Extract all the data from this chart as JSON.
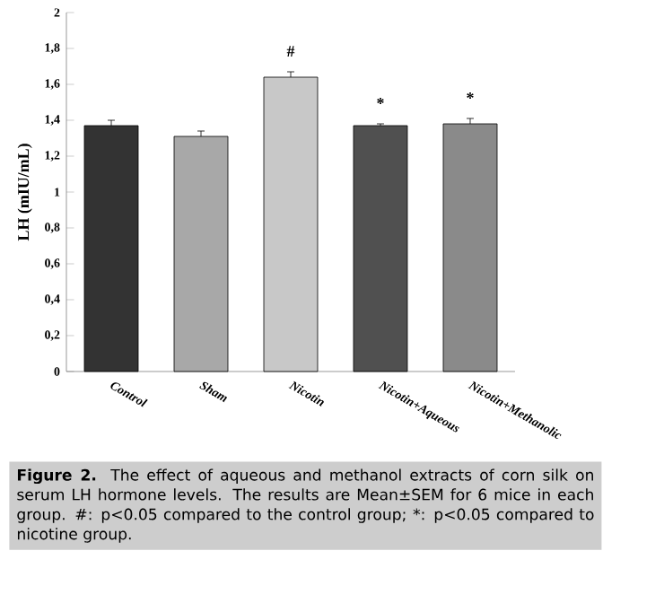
{
  "chart_data": {
    "type": "bar",
    "ylabel": "LH (mIU/mL)",
    "categories": [
      "Control",
      "Sham",
      "Nicotin",
      "Nicotin+Aqueous",
      "Nicotin+Methanolic"
    ],
    "values": [
      1.37,
      1.31,
      1.64,
      1.37,
      1.38
    ],
    "errors": [
      0.03,
      0.03,
      0.03,
      0.01,
      0.03
    ],
    "colors": [
      "#333333",
      "#a8a8a8",
      "#c8c8c8",
      "#505050",
      "#8a8a8a"
    ],
    "ylim": [
      0,
      2
    ],
    "yticks": [
      0,
      {
        "value": 0.2,
        "label": "0,2"
      },
      {
        "value": 0.4,
        "label": "0,4"
      },
      {
        "value": 0.6,
        "label": "0,6"
      },
      {
        "value": 0.8,
        "label": "0,8"
      },
      1,
      {
        "value": 1.2,
        "label": "1,2"
      },
      {
        "value": 1.4,
        "label": "1,4"
      },
      {
        "value": 1.6,
        "label": "1,6"
      },
      {
        "value": 1.8,
        "label": "1,8"
      },
      2
    ],
    "grid": false,
    "annotations": [
      {
        "text": "#",
        "x": "Nicotin",
        "y": 1.67
      },
      {
        "text": "*",
        "x": "Nicotin+Aqueous",
        "y": 1.38
      },
      {
        "text": "*",
        "x": "Nicotin+Methanolic",
        "y": 1.41
      },
      "**Figure 2.** The effect of aqueous and methanol extracts of corn silk on serum LH hormone levels. The results are Mean±SEM for 6 mice in each group. #: p<0.05 compared to the control group; *: p<0.05 compared to nicotine group."
    ]
  }
}
